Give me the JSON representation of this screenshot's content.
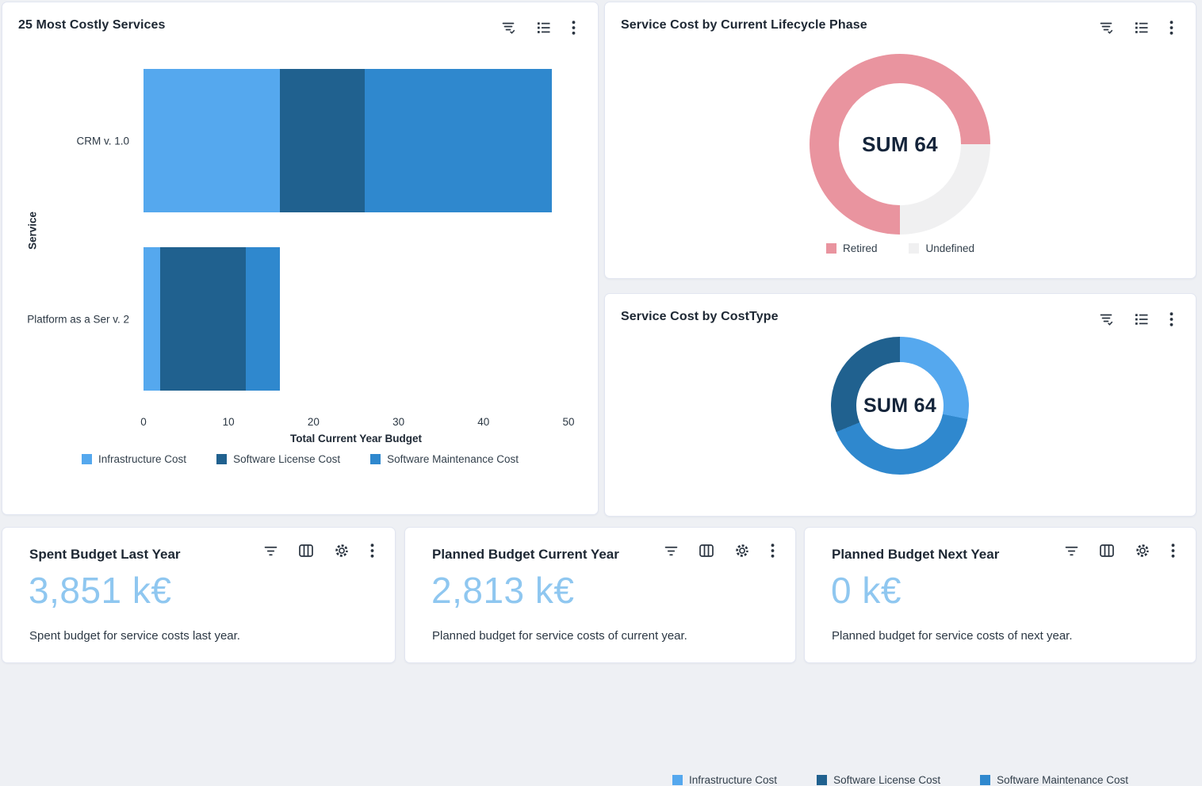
{
  "colors": {
    "infrastructure_cost": "#55a8ee",
    "software_license_cost": "#20618f",
    "software_maintenance_cost": "#2f88ce",
    "retired": "#e9949f",
    "undefined_phase": "#f0f0f1",
    "kpi_value_text": "#8fc7f0",
    "title_text": "#1d2733"
  },
  "icons": {
    "chart_card_toolbar": [
      "filter-check-icon",
      "legend-list-icon",
      "kebab-menu-icon"
    ],
    "kpi_card_toolbar": [
      "filter-icon",
      "columns-icon",
      "settings-gear-icon",
      "kebab-menu-icon"
    ]
  },
  "chart_data": [
    {
      "type": "bar",
      "orientation": "horizontal",
      "stacked": true,
      "title": "25 Most Costly Services",
      "categories": [
        "CRM v. 1.0",
        "Platform as a Ser v. 2"
      ],
      "series": [
        {
          "name": "Infrastructure Cost",
          "color": "#55a8ee",
          "values": [
            16,
            2
          ]
        },
        {
          "name": "Software License Cost",
          "color": "#20618f",
          "values": [
            10,
            10
          ]
        },
        {
          "name": "Software Maintenance Cost",
          "color": "#2f88ce",
          "values": [
            22,
            4
          ]
        }
      ],
      "category_totals": [
        48,
        16
      ],
      "xlabel": "Total Current Year Budget",
      "ylabel": "Service",
      "xlim": [
        0,
        50
      ],
      "xticks": [
        0,
        10,
        20,
        30,
        40,
        50
      ],
      "grid": false,
      "legend_position": "bottom"
    },
    {
      "type": "pie",
      "donut": true,
      "title": "Service Cost by Current Lifecycle Phase",
      "center_label": "SUM 64",
      "total": 64,
      "slices": [
        {
          "label": "Retired",
          "value": 48,
          "color": "#e9949f"
        },
        {
          "label": "Undefined",
          "value": 16,
          "color": "#f0f0f1"
        }
      ],
      "start_angle_deg": 180,
      "draw_order": [
        0,
        1
      ],
      "legend_position": "bottom"
    },
    {
      "type": "pie",
      "donut": true,
      "title": "Service Cost by CostType",
      "center_label": "SUM 64",
      "total": 64,
      "slices": [
        {
          "label": "Infrastructure Cost",
          "value": 18,
          "color": "#55a8ee"
        },
        {
          "label": "Software License Cost",
          "value": 20,
          "color": "#20618f"
        },
        {
          "label": "Software Maintenance Cost",
          "value": 26,
          "color": "#2f88ce"
        }
      ],
      "start_angle_deg": 0,
      "draw_order": [
        0,
        2,
        1
      ],
      "legend_position": "bottom"
    }
  ],
  "kpis": [
    {
      "title": "Spent Budget Last Year",
      "value": "3,851 k€",
      "description": "Spent budget for service costs last year."
    },
    {
      "title": "Planned Budget Current Year",
      "value": "2,813 k€",
      "description": "Planned budget for service costs of current year."
    },
    {
      "title": "Planned Budget Next Year",
      "value": "0 k€",
      "description": "Planned budget for service costs of next year."
    }
  ]
}
